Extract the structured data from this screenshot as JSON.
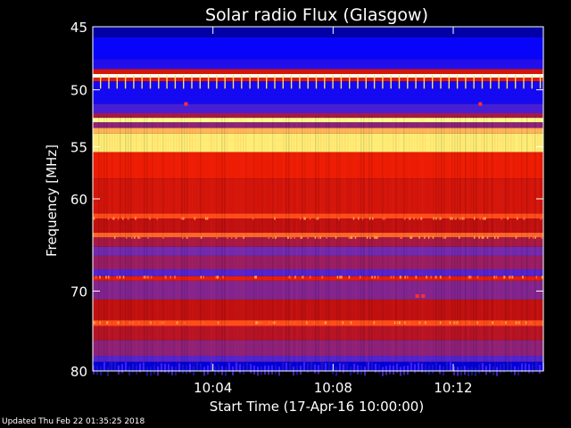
{
  "chart_data": {
    "type": "heatmap",
    "title": "Solar radio Flux (Glasgow)",
    "xlabel": "Start Time (17-Apr-16 10:00:00)",
    "ylabel": "Frequency [MHz]",
    "x_range_minutes": [
      0,
      15
    ],
    "x_ticks": [
      {
        "minute": 4,
        "label": "10:04"
      },
      {
        "minute": 8,
        "label": "10:08"
      },
      {
        "minute": 12,
        "label": "10:12"
      }
    ],
    "y_range_mhz": [
      45,
      80
    ],
    "y_scale": "log",
    "y_ticks": [
      {
        "mhz": 45,
        "label": "45"
      },
      {
        "mhz": 50,
        "label": "50"
      },
      {
        "mhz": 55,
        "label": "55"
      },
      {
        "mhz": 60,
        "label": "60"
      },
      {
        "mhz": 70,
        "label": "70"
      },
      {
        "mhz": 80,
        "label": "80"
      }
    ],
    "colormap": [
      "#000080",
      "#0000ff",
      "#6a2cc0",
      "#c01010",
      "#ff2000",
      "#ffff80",
      "#ffffff"
    ],
    "bands": [
      {
        "from": 45.0,
        "to": 45.8,
        "level": 0.05
      },
      {
        "from": 45.8,
        "to": 47.5,
        "level": 0.18
      },
      {
        "from": 47.5,
        "to": 48.3,
        "level": 0.22
      },
      {
        "from": 48.3,
        "to": 48.7,
        "level": 0.55
      },
      {
        "from": 48.7,
        "to": 49.0,
        "level": 0.98
      },
      {
        "from": 49.0,
        "to": 49.3,
        "level": 0.6
      },
      {
        "from": 49.3,
        "to": 51.2,
        "level": 0.2
      },
      {
        "from": 51.2,
        "to": 52.0,
        "level": 0.28
      },
      {
        "from": 52.0,
        "to": 52.4,
        "level": 0.45
      },
      {
        "from": 52.4,
        "to": 52.8,
        "level": 0.85
      },
      {
        "from": 52.8,
        "to": 53.3,
        "level": 0.4
      },
      {
        "from": 53.3,
        "to": 53.8,
        "level": 0.78
      },
      {
        "from": 53.8,
        "to": 55.5,
        "level": 0.82
      },
      {
        "from": 55.5,
        "to": 58.0,
        "level": 0.62
      },
      {
        "from": 58.0,
        "to": 61.5,
        "level": 0.55
      },
      {
        "from": 61.5,
        "to": 62.0,
        "level": 0.7
      },
      {
        "from": 62.0,
        "to": 63.5,
        "level": 0.5
      },
      {
        "from": 63.5,
        "to": 64.0,
        "level": 0.72
      },
      {
        "from": 64.0,
        "to": 65.0,
        "level": 0.45
      },
      {
        "from": 65.0,
        "to": 66.0,
        "level": 0.35
      },
      {
        "from": 66.0,
        "to": 67.5,
        "level": 0.42
      },
      {
        "from": 67.5,
        "to": 68.3,
        "level": 0.3
      },
      {
        "from": 68.3,
        "to": 68.8,
        "level": 0.62
      },
      {
        "from": 68.8,
        "to": 71.0,
        "level": 0.38
      },
      {
        "from": 71.0,
        "to": 73.5,
        "level": 0.5
      },
      {
        "from": 73.5,
        "to": 74.2,
        "level": 0.7
      },
      {
        "from": 74.2,
        "to": 76.0,
        "level": 0.48
      },
      {
        "from": 76.0,
        "to": 78.0,
        "level": 0.4
      },
      {
        "from": 78.0,
        "to": 78.8,
        "level": 0.3
      },
      {
        "from": 78.8,
        "to": 80.0,
        "level": 0.12
      }
    ],
    "bursts": [
      {
        "minute": 10.8,
        "mhz": 70.6
      },
      {
        "minute": 11.0,
        "mhz": 70.6
      },
      {
        "minute": 3.1,
        "mhz": 51.2
      },
      {
        "minute": 12.9,
        "mhz": 51.2
      }
    ]
  },
  "footer": {
    "updated_text": "Updated Thu Feb 22 01:35:25 2018"
  }
}
